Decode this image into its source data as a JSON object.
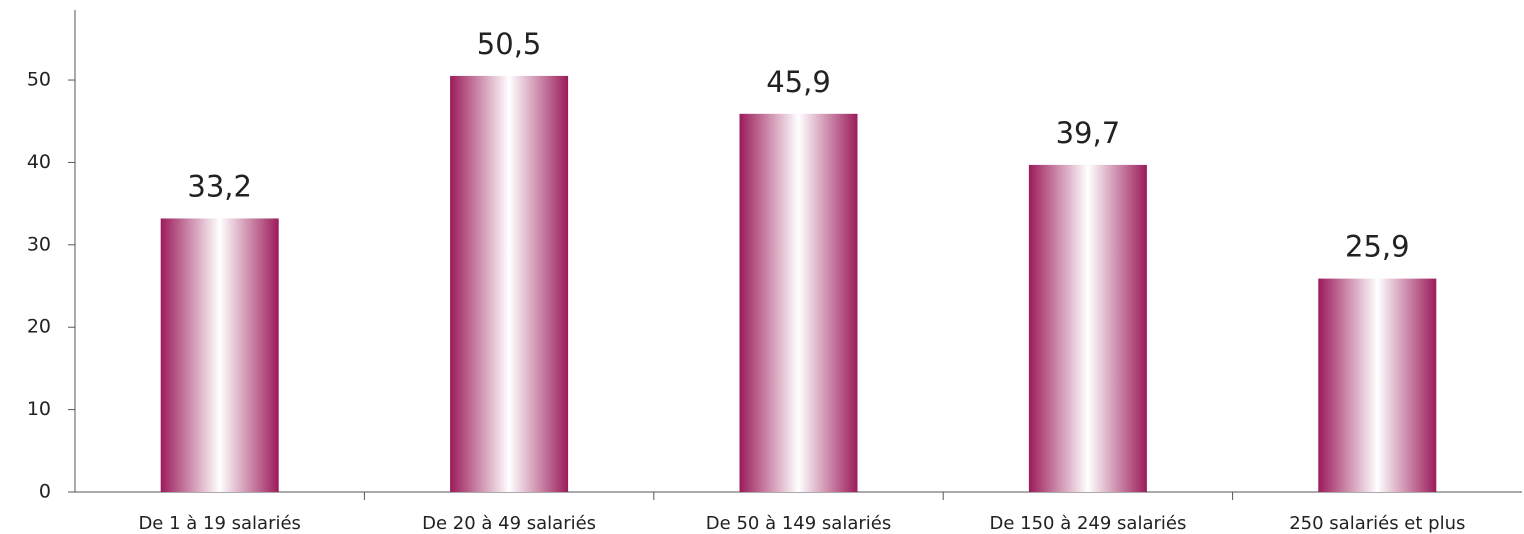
{
  "chart_data": {
    "type": "bar",
    "categories": [
      "De 1 à 19 salariés",
      "De 20 à 49 salariés",
      "De 50 à 149 salariés",
      "De 150 à 249 salariés",
      "250 salariés et plus"
    ],
    "values": [
      33.2,
      50.5,
      45.9,
      39.7,
      25.9
    ],
    "value_labels": [
      "33,2",
      "50,5",
      "45,9",
      "39,7",
      "25,9"
    ],
    "color": "#9b1b5a",
    "ylim": [
      0,
      58.5
    ],
    "yticks": [
      0,
      10,
      20,
      30,
      40,
      50
    ],
    "grid": false
  }
}
